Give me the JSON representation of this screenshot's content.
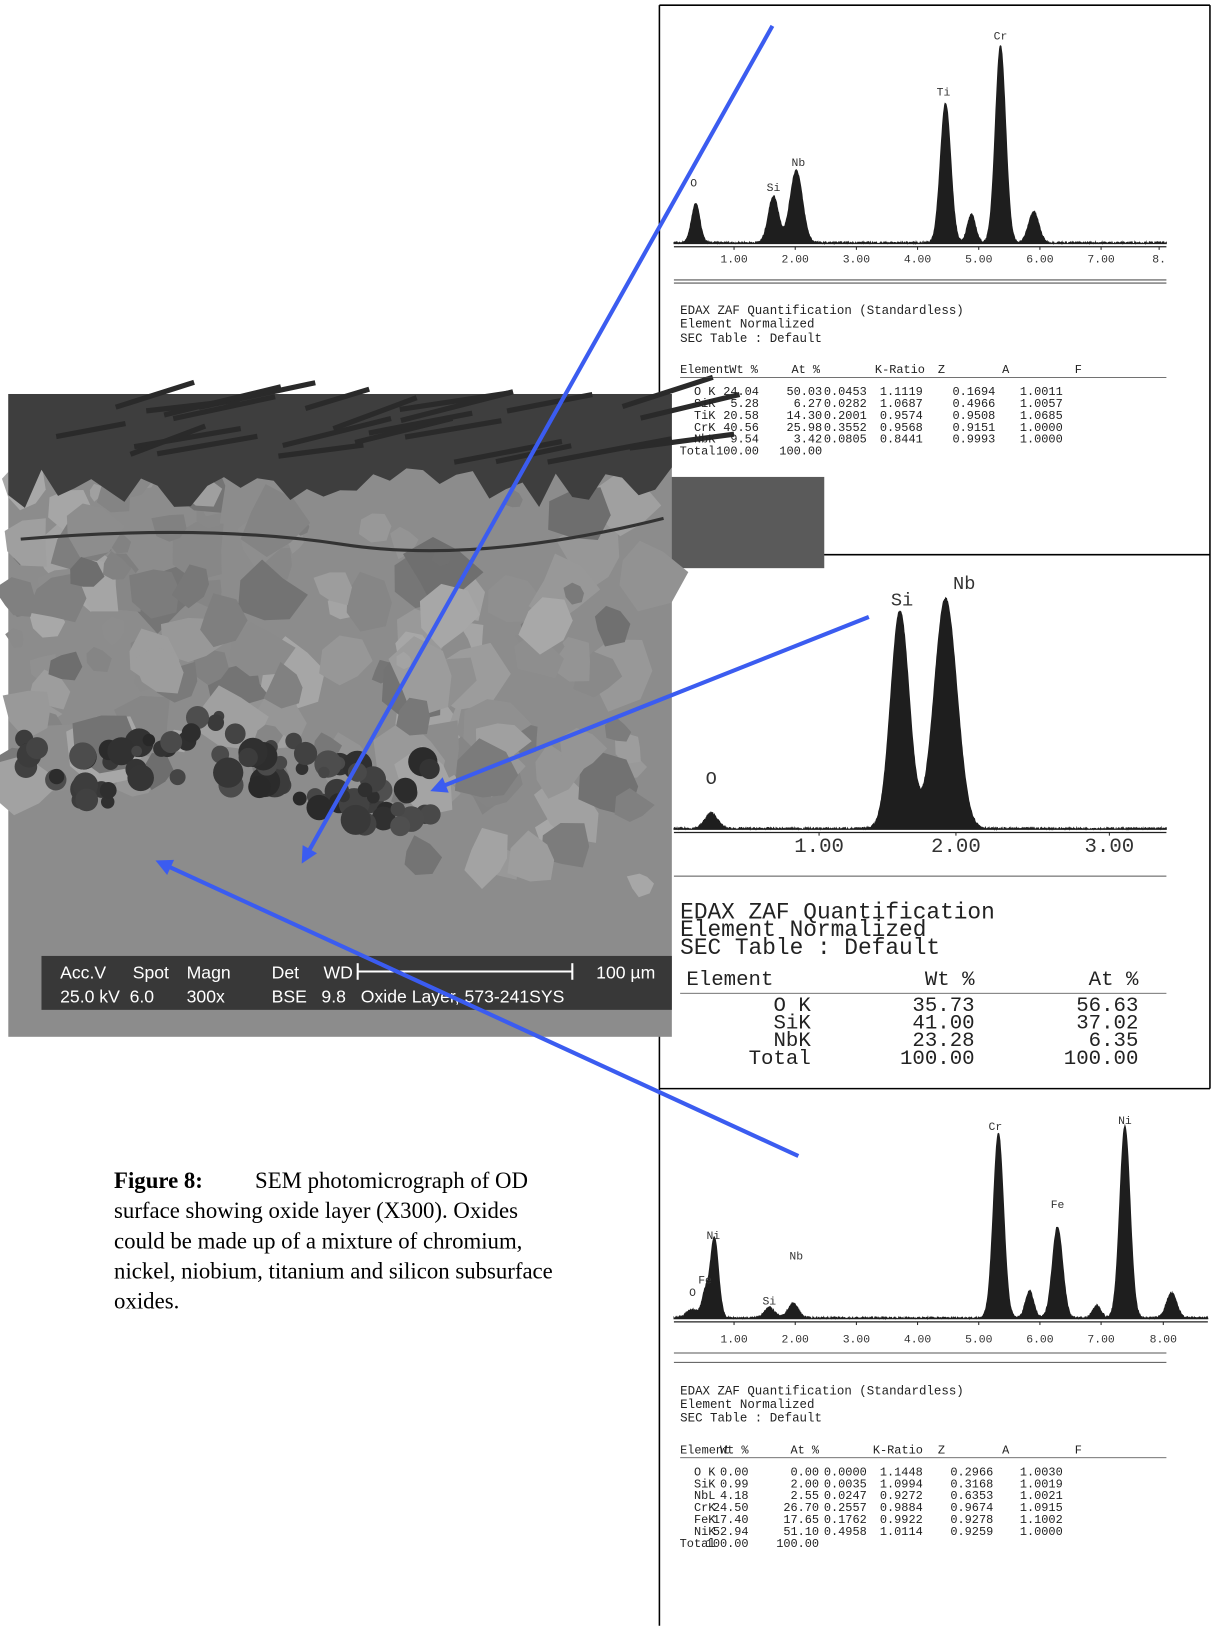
{
  "sem_image": {
    "header": [
      "Acc.V",
      "Spot",
      "Magn",
      "Det",
      "WD"
    ],
    "scale_bar": "100 µm",
    "values": [
      "25.0 kV",
      "6.0",
      "300x",
      "BSE",
      "9.8",
      "Oxide Layer, 573-241SYS"
    ]
  },
  "caption": {
    "label": "Figure 8:",
    "lines": [
      "SEM photomicrograph of OD",
      "surface showing oxide layer (X300). Oxides",
      "could be made up of a mixture of chromium,",
      "nickel, niobium, titanium and silicon subsurface",
      "oxides."
    ]
  },
  "spectra": [
    {
      "peaks": [
        "O",
        "Si",
        "Nb",
        "Ti",
        "Cr"
      ],
      "ticks": [
        "1.00",
        "2.00",
        "3.00",
        "4.00",
        "5.00",
        "6.00",
        "7.00",
        "8."
      ],
      "heading": [
        "EDAX ZAF Quantification (Standardless)",
        "Element Normalized",
        "SEC Table : Default"
      ],
      "table": {
        "header": [
          "Element",
          "Wt %",
          "At %",
          "K-Ratio",
          "Z",
          "A",
          "F"
        ],
        "rows": [
          [
            "O K",
            "24.04",
            "50.03",
            "0.0453",
            "1.1119",
            "0.1694",
            "1.0011"
          ],
          [
            "SiK",
            "5.28",
            "6.27",
            "0.0282",
            "1.0687",
            "0.4966",
            "1.0057"
          ],
          [
            "TiK",
            "20.58",
            "14.30",
            "0.2001",
            "0.9574",
            "0.9508",
            "1.0685"
          ],
          [
            "CrK",
            "40.56",
            "25.98",
            "0.3552",
            "0.9568",
            "0.9151",
            "1.0000"
          ],
          [
            "NbK",
            "9.54",
            "3.42",
            "0.0805",
            "0.8441",
            "0.9993",
            "1.0000"
          ],
          [
            "Total",
            "100.00",
            "100.00"
          ]
        ]
      }
    },
    {
      "peaks": [
        "O",
        "Si",
        "Nb"
      ],
      "ticks": [
        "1.00",
        "2.00",
        "3.00"
      ],
      "heading": [
        "EDAX ZAF Quantification",
        "Element Normalized",
        "SEC Table : Default"
      ],
      "table": {
        "header": [
          "Element",
          "Wt %",
          "At %"
        ],
        "rows": [
          [
            "O K",
            "35.73",
            "56.63"
          ],
          [
            "SiK",
            "41.00",
            "37.02"
          ],
          [
            "NbK",
            "23.28",
            "6.35"
          ],
          [
            "Total",
            "100.00",
            "100.00"
          ]
        ]
      }
    },
    {
      "peaks": [
        "O",
        "Fe",
        "Ni",
        "Si",
        "Nb",
        "Cr",
        "Fe",
        "Ni"
      ],
      "ticks": [
        "1.00",
        "2.00",
        "3.00",
        "4.00",
        "5.00",
        "6.00",
        "7.00",
        "8.00"
      ],
      "heading": [
        "EDAX ZAF Quantification (Standardless)",
        "Element Normalized",
        "SEC Table : Default"
      ],
      "table": {
        "header": [
          "Element",
          "Wt %",
          "At %",
          "K-Ratio",
          "Z",
          "A",
          "F"
        ],
        "rows": [
          [
            "O K",
            "0.00",
            "0.00",
            "0.0000",
            "1.1448",
            "0.2966",
            "1.0030"
          ],
          [
            "SiK",
            "0.99",
            "2.00",
            "0.0035",
            "1.0994",
            "0.3168",
            "1.0019"
          ],
          [
            "NbL",
            "4.18",
            "2.55",
            "0.0247",
            "0.9272",
            "0.6353",
            "1.0021"
          ],
          [
            "CrK",
            "24.50",
            "26.70",
            "0.2557",
            "0.9884",
            "0.9674",
            "1.0915"
          ],
          [
            "FeK",
            "17.40",
            "17.65",
            "0.1762",
            "0.9922",
            "0.9278",
            "1.1002"
          ],
          [
            "NiK",
            "52.94",
            "51.10",
            "0.4958",
            "1.0114",
            "0.9259",
            "1.0000"
          ],
          [
            "Total",
            "100.00",
            "100.00"
          ]
        ]
      }
    }
  ]
}
